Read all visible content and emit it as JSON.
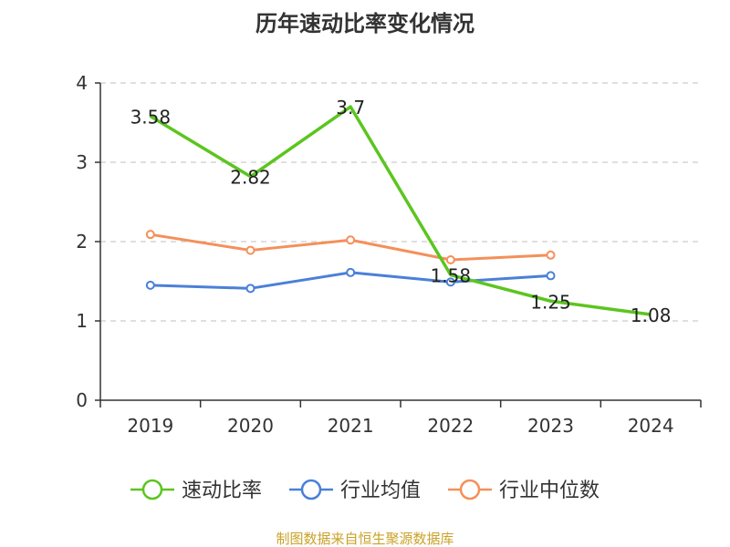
{
  "chart_data": {
    "type": "line",
    "title": "历年速动比率变化情况",
    "categories": [
      "2019",
      "2020",
      "2021",
      "2022",
      "2023",
      "2024"
    ],
    "ylim": [
      0,
      4
    ],
    "yticks": [
      "0",
      "1",
      "2",
      "3",
      "4"
    ],
    "grid": true,
    "legend_position": "bottom",
    "series": [
      {
        "name": "速动比率",
        "color": "#5cc51f",
        "values": [
          3.58,
          2.82,
          3.7,
          1.58,
          1.25,
          1.08
        ],
        "labels": [
          "3.58",
          "2.82",
          "3.7",
          "1.58",
          "1.25",
          "1.08"
        ],
        "show_markers": false
      },
      {
        "name": "行业均值",
        "color": "#4a80d8",
        "values": [
          1.45,
          1.41,
          1.61,
          1.49,
          1.57,
          null
        ],
        "show_markers": true
      },
      {
        "name": "行业中位数",
        "color": "#f4905a",
        "values": [
          2.09,
          1.89,
          2.02,
          1.77,
          1.83,
          null
        ],
        "show_markers": true
      }
    ]
  },
  "source_text": "制图数据来自恒生聚源数据库"
}
